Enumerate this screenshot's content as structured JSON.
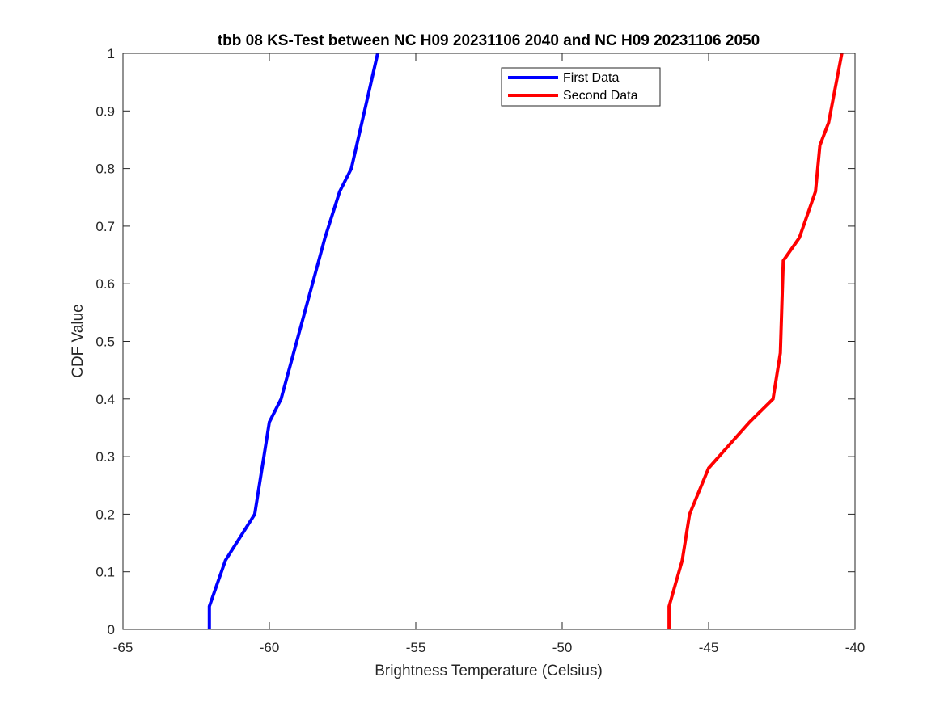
{
  "chart_data": {
    "type": "line",
    "title": "tbb 08 KS-Test between NC H09 20231106 2040 and NC H09 20231106 2050",
    "xlabel": "Brightness Temperature (Celsius)",
    "ylabel": "CDF Value",
    "xlim": [
      -65,
      -40
    ],
    "ylim": [
      0,
      1
    ],
    "xticks": [
      -65,
      -60,
      -55,
      -50,
      -45,
      -40
    ],
    "yticks": [
      0,
      0.1,
      0.2,
      0.3,
      0.4,
      0.5,
      0.6,
      0.7,
      0.8,
      0.9,
      1
    ],
    "xtick_labels": [
      "-65",
      "-60",
      "-55",
      "-50",
      "-45",
      "-40"
    ],
    "ytick_labels": [
      "0",
      "0.1",
      "0.2",
      "0.3",
      "0.4",
      "0.5",
      "0.6",
      "0.7",
      "0.8",
      "0.9",
      "1"
    ],
    "grid": false,
    "legend_position": "top-center",
    "series": [
      {
        "name": "First Data",
        "color": "#0000ff",
        "x": [
          -62.05,
          -62.05,
          -61.5,
          -60.5,
          -60.0,
          -59.6,
          -58.1,
          -57.6,
          -57.2,
          -56.3
        ],
        "y": [
          0,
          0.04,
          0.12,
          0.2,
          0.36,
          0.4,
          0.68,
          0.76,
          0.8,
          1.0
        ]
      },
      {
        "name": "Second Data",
        "color": "#ff0000",
        "x": [
          -46.35,
          -46.35,
          -45.9,
          -45.65,
          -45.0,
          -43.6,
          -42.8,
          -42.55,
          -42.45,
          -41.9,
          -41.35,
          -41.2,
          -40.9,
          -40.45
        ],
        "y": [
          0,
          0.04,
          0.12,
          0.2,
          0.28,
          0.36,
          0.4,
          0.48,
          0.64,
          0.68,
          0.76,
          0.84,
          0.88,
          1.0
        ]
      }
    ]
  }
}
